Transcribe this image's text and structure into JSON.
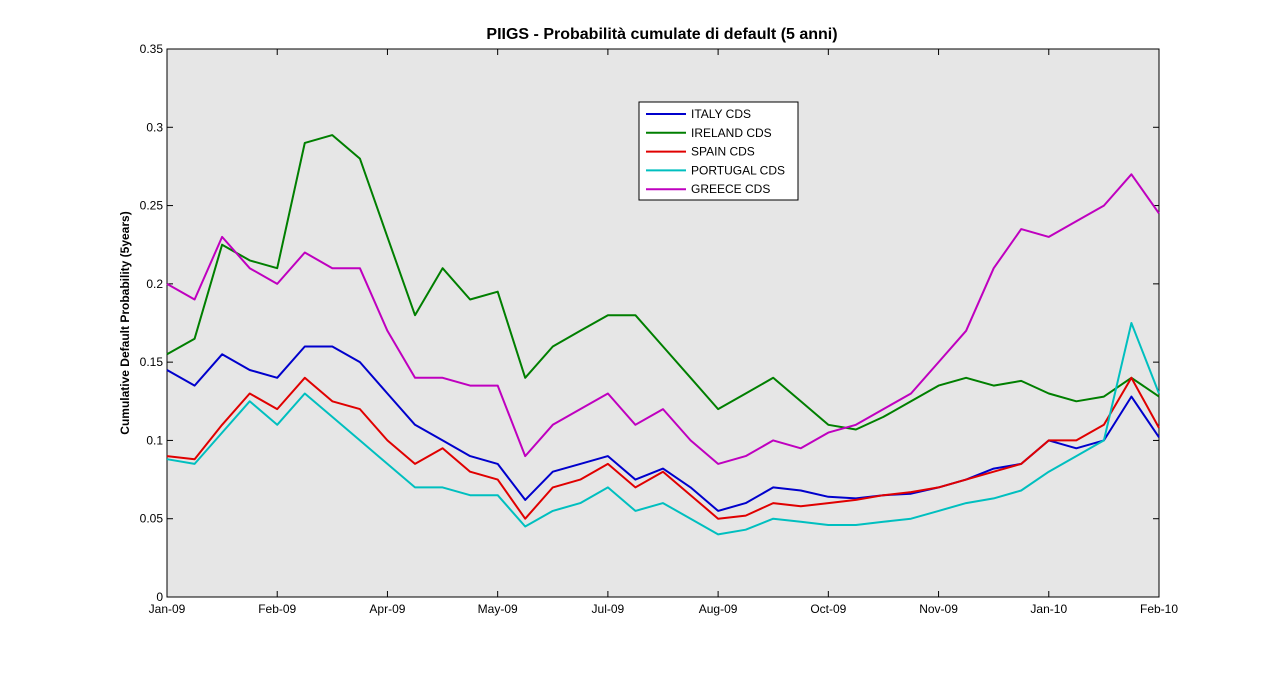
{
  "chart_data": {
    "type": "line",
    "title": "PIIGS - Probabilità cumulate di default (5 anni)",
    "xlabel": "",
    "ylabel": "Cumulative Default Probability (5years)",
    "ylim": [
      0,
      0.35
    ],
    "yticks": [
      "0",
      "0.05",
      "0.1",
      "0.15",
      "0.2",
      "0.25",
      "0.3",
      "0.35"
    ],
    "ytick_values": [
      0,
      0.05,
      0.1,
      0.15,
      0.2,
      0.25,
      0.3,
      0.35
    ],
    "xticks": [
      "Jan-09",
      "Feb-09",
      "Apr-09",
      "May-09",
      "Jul-09",
      "Aug-09",
      "Oct-09",
      "Nov-09",
      "Jan-10",
      "Feb-10"
    ],
    "grid": false,
    "background": "#e6e6e6",
    "legend_position": "top-center",
    "x": [
      0,
      0.25,
      0.5,
      0.75,
      1,
      1.25,
      1.5,
      1.75,
      2,
      2.25,
      2.5,
      2.75,
      3,
      3.25,
      3.5,
      3.75,
      4,
      4.25,
      4.5,
      4.75,
      5,
      5.25,
      5.5,
      5.75,
      6,
      6.25,
      6.5,
      6.75,
      7,
      7.25,
      7.5,
      7.75,
      8,
      8.25,
      8.5,
      8.75,
      9
    ],
    "series": [
      {
        "name": "ITALY CDS",
        "color": "#0000cc",
        "values": [
          0.145,
          0.135,
          0.155,
          0.145,
          0.14,
          0.16,
          0.16,
          0.15,
          0.13,
          0.11,
          0.1,
          0.09,
          0.085,
          0.062,
          0.08,
          0.085,
          0.09,
          0.075,
          0.082,
          0.07,
          0.055,
          0.06,
          0.07,
          0.068,
          0.064,
          0.063,
          0.065,
          0.066,
          0.07,
          0.075,
          0.082,
          0.085,
          0.1,
          0.095,
          0.1,
          0.128,
          0.102
        ]
      },
      {
        "name": "IRELAND CDS",
        "color": "#007f00",
        "values": [
          0.155,
          0.165,
          0.225,
          0.215,
          0.21,
          0.29,
          0.295,
          0.28,
          0.23,
          0.18,
          0.21,
          0.19,
          0.195,
          0.14,
          0.16,
          0.17,
          0.18,
          0.18,
          0.16,
          0.14,
          0.12,
          0.13,
          0.14,
          0.125,
          0.11,
          0.107,
          0.115,
          0.125,
          0.135,
          0.14,
          0.135,
          0.138,
          0.13,
          0.125,
          0.128,
          0.14,
          0.128
        ]
      },
      {
        "name": "SPAIN CDS",
        "color": "#e00000",
        "values": [
          0.09,
          0.088,
          0.11,
          0.13,
          0.12,
          0.14,
          0.125,
          0.12,
          0.1,
          0.085,
          0.095,
          0.08,
          0.075,
          0.05,
          0.07,
          0.075,
          0.085,
          0.07,
          0.08,
          0.065,
          0.05,
          0.052,
          0.06,
          0.058,
          0.06,
          0.062,
          0.065,
          0.067,
          0.07,
          0.075,
          0.08,
          0.085,
          0.1,
          0.1,
          0.11,
          0.14,
          0.108
        ]
      },
      {
        "name": "PORTUGAL CDS",
        "color": "#00bfbf",
        "values": [
          0.088,
          0.085,
          0.105,
          0.125,
          0.11,
          0.13,
          0.115,
          0.1,
          0.085,
          0.07,
          0.07,
          0.065,
          0.065,
          0.045,
          0.055,
          0.06,
          0.07,
          0.055,
          0.06,
          0.05,
          0.04,
          0.043,
          0.05,
          0.048,
          0.046,
          0.046,
          0.048,
          0.05,
          0.055,
          0.06,
          0.063,
          0.068,
          0.08,
          0.09,
          0.1,
          0.175,
          0.13
        ]
      },
      {
        "name": "GREECE CDS",
        "color": "#bf00bf",
        "values": [
          0.2,
          0.19,
          0.23,
          0.21,
          0.2,
          0.22,
          0.21,
          0.21,
          0.17,
          0.14,
          0.14,
          0.135,
          0.135,
          0.09,
          0.11,
          0.12,
          0.13,
          0.11,
          0.12,
          0.1,
          0.085,
          0.09,
          0.1,
          0.095,
          0.105,
          0.11,
          0.12,
          0.13,
          0.15,
          0.17,
          0.21,
          0.235,
          0.23,
          0.24,
          0.25,
          0.27,
          0.245
        ]
      }
    ]
  }
}
